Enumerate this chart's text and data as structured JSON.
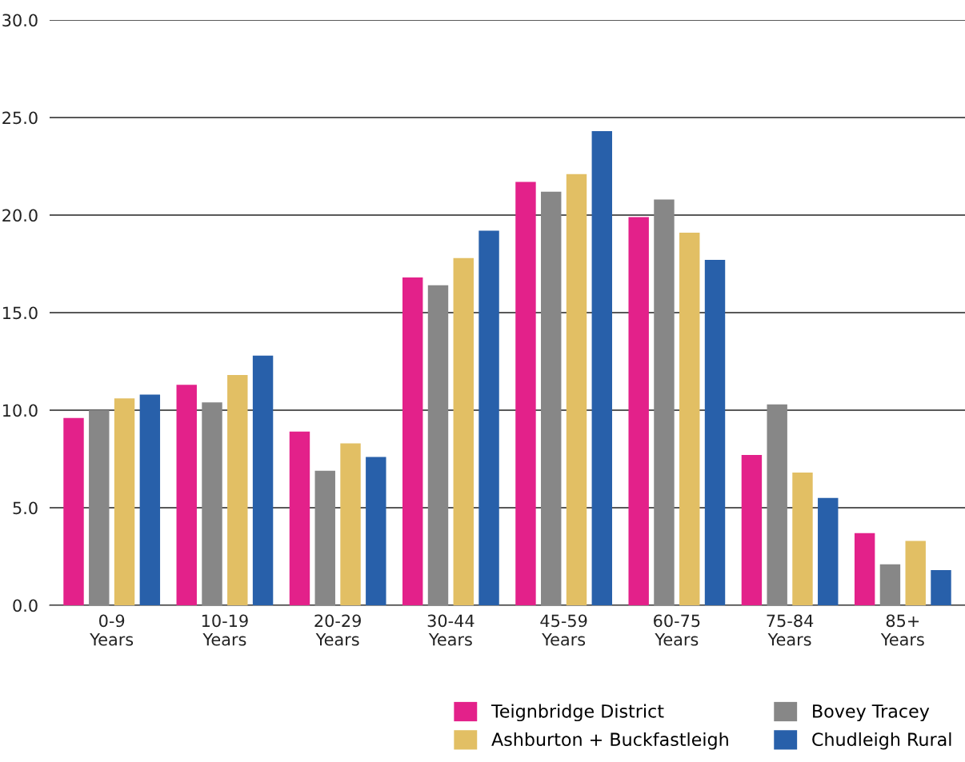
{
  "chart_data": {
    "type": "bar",
    "categories": [
      "0-9\nYears",
      "10-19\nYears",
      "20-29\nYears",
      "30-44\nYears",
      "45-59\nYears",
      "60-75\nYears",
      "75-84\nYears",
      "85+\nYears"
    ],
    "series": [
      {
        "name": "Teignbridge District",
        "color": "#e3218a",
        "values": [
          9.6,
          11.3,
          8.9,
          16.8,
          21.7,
          19.9,
          7.7,
          3.7
        ]
      },
      {
        "name": "Bovey Tracey",
        "color": "#878787",
        "values": [
          10.0,
          10.4,
          6.9,
          16.4,
          21.2,
          20.8,
          10.3,
          2.1
        ]
      },
      {
        "name": "Ashburton + Buckfastleigh",
        "color": "#e2bf64",
        "values": [
          10.6,
          11.8,
          8.3,
          17.8,
          22.1,
          19.1,
          6.8,
          3.3
        ]
      },
      {
        "name": "Chudleigh Rural",
        "color": "#2860aa",
        "values": [
          10.8,
          12.8,
          7.6,
          19.2,
          24.3,
          17.7,
          5.5,
          1.8
        ]
      }
    ],
    "ylim": [
      0,
      30
    ],
    "yticks": [
      {
        "value": 0,
        "label": "0.0"
      },
      {
        "value": 5,
        "label": "5.0"
      },
      {
        "value": 10,
        "label": "10.0"
      },
      {
        "value": 15,
        "label": "15.0"
      },
      {
        "value": 20,
        "label": "20.0"
      },
      {
        "value": 25,
        "label": "25.0"
      },
      {
        "value": 30,
        "label": "30.0"
      }
    ],
    "grid": "y",
    "legend": "bottom right"
  }
}
